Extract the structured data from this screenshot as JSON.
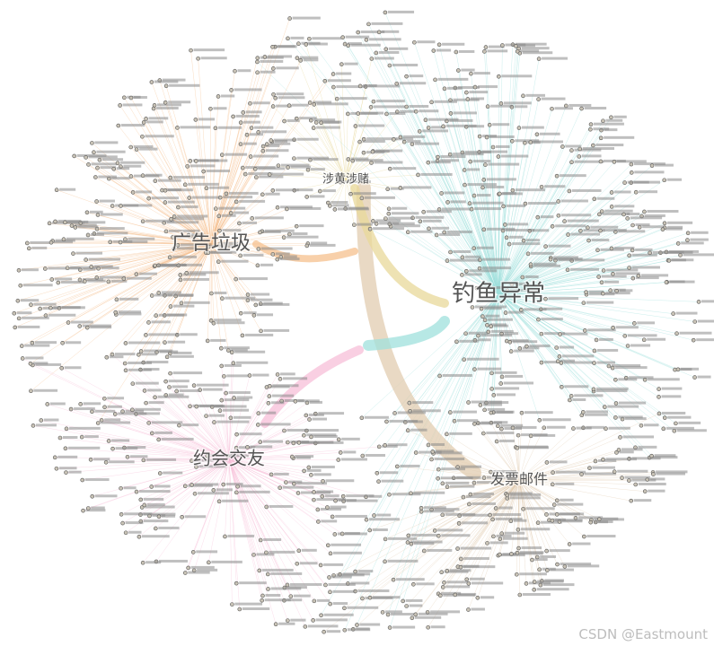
{
  "nodes": [
    {
      "label": "涉黄涉赌",
      "color": "#e8d89a"
    },
    {
      "label": "广告垃圾",
      "color": "#f6c08e"
    },
    {
      "label": "钓鱼异常",
      "color": "#9fe0dc"
    },
    {
      "label": "约会交友",
      "color": "#f7bfd8"
    },
    {
      "label": "发票邮件",
      "color": "#e2ccb0"
    }
  ],
  "watermark": "CSDN @Eastmount"
}
